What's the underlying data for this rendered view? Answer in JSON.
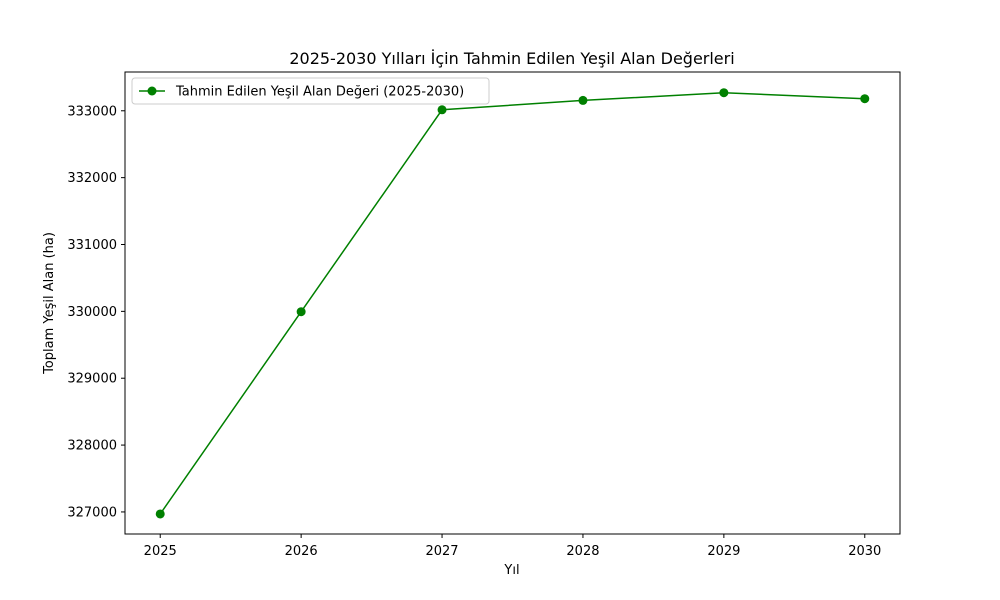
{
  "chart_data": {
    "type": "line",
    "title": "2025-2030 Yılları İçin Tahmin Edilen Yeşil Alan Değerleri",
    "xlabel": "Yıl",
    "ylabel": "Toplam Yeşil Alan (ha)",
    "x": [
      2025,
      2026,
      2027,
      2028,
      2029,
      2030
    ],
    "x_tick_labels": [
      "2025",
      "2026",
      "2027",
      "2028",
      "2029",
      "2030"
    ],
    "y_ticks": [
      327000,
      328000,
      329000,
      330000,
      331000,
      332000,
      333000
    ],
    "y_tick_labels": [
      "327000",
      "328000",
      "329000",
      "330000",
      "331000",
      "332000",
      "333000"
    ],
    "xlim": [
      2024.75,
      2030.25
    ],
    "ylim": [
      326670,
      333580
    ],
    "grid": false,
    "legend_position": "top-left",
    "series": [
      {
        "name": "Tahmin Edilen Yeşil Alan Değeri (2025-2030)",
        "color": "#008000",
        "marker": "circle",
        "values": [
          326970,
          329995,
          333015,
          333155,
          333270,
          333180
        ]
      }
    ]
  }
}
